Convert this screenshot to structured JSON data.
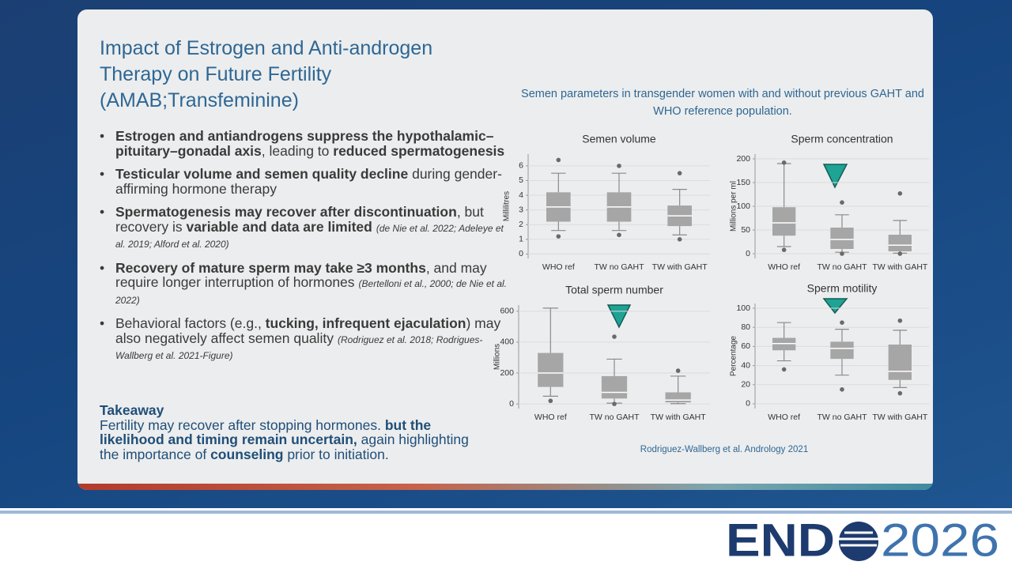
{
  "title_lines": [
    "Impact of Estrogen and Anti-androgen",
    "Therapy on Future Fertility",
    "(AMAB;Transfeminine)"
  ],
  "bullets": [
    [
      {
        "text": "Estrogen and antiandrogens suppress the hypothalamic–pituitary–gonadal axis",
        "style": "bold"
      },
      {
        "text": ", leading to ",
        "style": "normal"
      },
      {
        "text": "reduced spermatogenesis",
        "style": "bold"
      }
    ],
    [
      {
        "text": "Testicular volume and semen quality decline",
        "style": "bold"
      },
      {
        "text": " during gender-affirming hormone therapy",
        "style": "normal"
      }
    ],
    [
      {
        "text": "Spermatogenesis may recover after discontinuation",
        "style": "bold"
      },
      {
        "text": ", but recovery is ",
        "style": "normal"
      },
      {
        "text": "variable and data are limited",
        "style": "bold"
      },
      {
        "text": "(de Nie et al. 2022; Adeleye et al. 2019; Alford et al. 2020)",
        "style": "cite"
      }
    ],
    [
      {
        "text": "Recovery of mature sperm may take ≥3 months",
        "style": "bold"
      },
      {
        "text": ", and may require longer interruption of hormones",
        "style": "normal"
      },
      {
        "text": "(Bertelloni et al., 2000; de Nie et al. 2022)",
        "style": "cite"
      }
    ],
    [
      {
        "text": "Behavioral factors (e.g., ",
        "style": "normal"
      },
      {
        "text": "tucking, infrequent ejaculation",
        "style": "bold"
      },
      {
        "text": ") may also negatively affect semen quality",
        "style": "normal"
      },
      {
        "text": "(Rodriguez et al. 2018; Rodrigues-Wallberg et al. 2021-Figure)",
        "style": "cite"
      }
    ]
  ],
  "takeaway": {
    "heading": "Takeaway",
    "segments": [
      {
        "text": "Fertility may recover after stopping hormones. ",
        "style": "normal"
      },
      {
        "text": "but the likelihood and timing remain uncertain,",
        "style": "bold"
      },
      {
        "text": " again highlighting the importance of ",
        "style": "normal"
      },
      {
        "text": "counseling",
        "style": "bold"
      },
      {
        "text": " prior to initiation.",
        "style": "normal"
      }
    ]
  },
  "figure_caption": "Semen parameters in transgender women with and without previous GAHT and WHO reference population.",
  "figure_source": "Rodriguez-Wallberg et al. Andrology 2021",
  "logo": {
    "brand": "END",
    "year": "2026"
  },
  "chart_data": [
    {
      "type": "box",
      "title": "Semen volume",
      "y_label": "Millilitres",
      "color": "#a6a6a6",
      "categories": [
        "WHO ref",
        "TW no GAHT",
        "TW with GAHT"
      ],
      "boxes": [
        {
          "whislo": 1.6,
          "q1": 2.2,
          "med": 3.2,
          "q3": 4.2,
          "whishi": 5.5,
          "fliers": [
            1.2,
            6.4
          ]
        },
        {
          "whislo": 1.6,
          "q1": 2.2,
          "med": 3.2,
          "q3": 4.2,
          "whishi": 5.5,
          "fliers": [
            1.3,
            6.0
          ]
        },
        {
          "whislo": 1.3,
          "q1": 1.9,
          "med": 2.6,
          "q3": 3.3,
          "whishi": 4.4,
          "fliers": [
            1.0,
            5.5
          ]
        }
      ],
      "ylim": [
        -0.3,
        6.8
      ],
      "yticks": [
        0,
        1,
        2,
        3,
        4,
        5,
        6
      ],
      "grid": true
    },
    {
      "type": "box",
      "title": "Sperm concentration",
      "y_label": "Millions per ml",
      "color": "#a6a6a6",
      "categories": [
        "WHO ref",
        "TW no GAHT",
        "TW with GAHT"
      ],
      "boxes": [
        {
          "whislo": 15,
          "q1": 38,
          "med": 65,
          "q3": 98,
          "whishi": 190,
          "fliers": [
            8,
            192
          ]
        },
        {
          "whislo": 3,
          "q1": 10,
          "med": 30,
          "q3": 55,
          "whishi": 82,
          "fliers": [
            0,
            108
          ]
        },
        {
          "whislo": 1,
          "q1": 5,
          "med": 18,
          "q3": 40,
          "whishi": 70,
          "fliers": [
            0,
            127
          ]
        }
      ],
      "ylim": [
        -10,
        210
      ],
      "yticks": [
        0,
        50,
        100,
        150,
        200
      ],
      "grid": true
    },
    {
      "type": "box",
      "title": "Total sperm number",
      "y_label": "Millions",
      "color": "#a6a6a6",
      "categories": [
        "WHO ref",
        "TW no GAHT",
        "TW with GAHT"
      ],
      "boxes": [
        {
          "whislo": 50,
          "q1": 110,
          "med": 200,
          "q3": 330,
          "whishi": 620,
          "fliers": [
            20
          ]
        },
        {
          "whislo": 5,
          "q1": 35,
          "med": 75,
          "q3": 180,
          "whishi": 290,
          "fliers": [
            0,
            435
          ]
        },
        {
          "whislo": 2,
          "q1": 10,
          "med": 25,
          "q3": 75,
          "whishi": 180,
          "fliers": [
            215
          ]
        }
      ],
      "ylim": [
        -30,
        640
      ],
      "yticks": [
        0,
        200,
        400,
        600
      ],
      "grid": true
    },
    {
      "type": "box",
      "title": "Sperm motility",
      "y_label": "Percentage",
      "color": "#a6a6a6",
      "categories": [
        "WHO ref",
        "TW no GAHT",
        "TW with GAHT"
      ],
      "boxes": [
        {
          "whislo": 45,
          "q1": 56,
          "med": 63,
          "q3": 69,
          "whishi": 85,
          "fliers": [
            36
          ]
        },
        {
          "whislo": 30,
          "q1": 47,
          "med": 58,
          "q3": 65,
          "whishi": 78,
          "fliers": [
            15,
            85
          ]
        },
        {
          "whislo": 17,
          "q1": 25,
          "med": 34,
          "q3": 62,
          "whishi": 77,
          "fliers": [
            11,
            87
          ]
        }
      ],
      "ylim": [
        -5,
        105
      ],
      "yticks": [
        0,
        20,
        40,
        60,
        80,
        100
      ],
      "grid": true
    }
  ]
}
